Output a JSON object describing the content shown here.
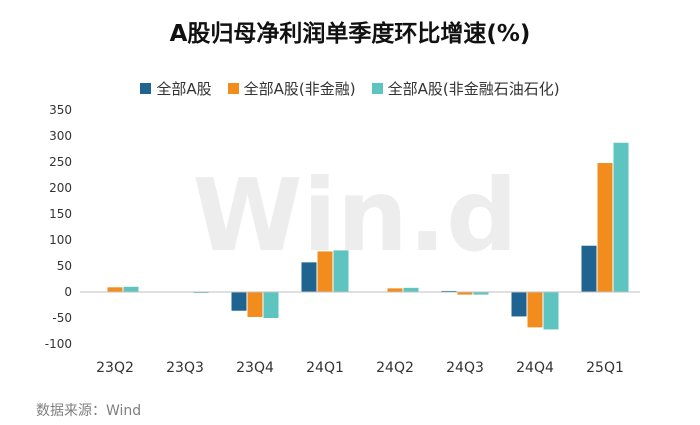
{
  "watermark": "Win.d",
  "source": "数据来源：Wind",
  "chart_data": {
    "type": "bar",
    "title": "A股归母净利润单季度环比增速(%)",
    "categories": [
      "23Q2",
      "23Q3",
      "23Q4",
      "24Q1",
      "24Q2",
      "24Q3",
      "24Q4",
      "25Q1"
    ],
    "series": [
      {
        "name": "全部A股",
        "color": "#1f6391",
        "values": [
          0,
          0,
          -36,
          57,
          0,
          2,
          -47,
          89
        ]
      },
      {
        "name": "全部A股(非金融)",
        "color": "#f28c1c",
        "values": [
          9,
          0,
          -48,
          78,
          7,
          -5,
          -68,
          248
        ]
      },
      {
        "name": "全部A股(非金融石油石化)",
        "color": "#5dc4c0",
        "values": [
          10,
          -2,
          -50,
          80,
          8,
          -5,
          -72,
          287
        ]
      }
    ],
    "yticks": [
      350,
      300,
      250,
      200,
      150,
      100,
      50,
      0,
      -50,
      -100
    ],
    "ylim": [
      -100,
      350
    ],
    "legend": "top-center",
    "grid": false
  }
}
